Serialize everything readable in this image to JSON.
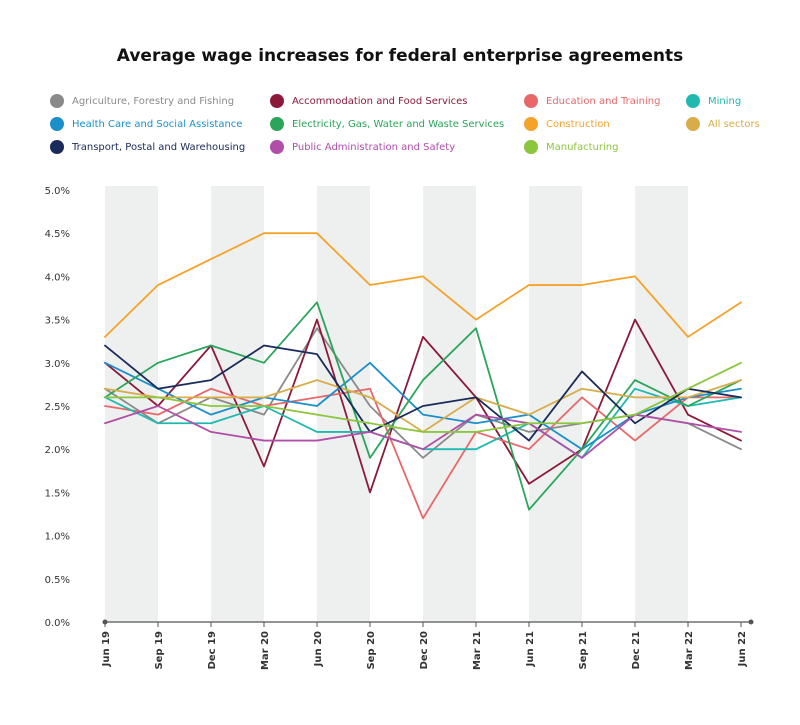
{
  "chart_data": {
    "type": "line",
    "title": "Average wage increases for federal enterprise agreements",
    "categories": [
      "Jun 19",
      "Sep 19",
      "Dec 19",
      "Mar 20",
      "Jun 20",
      "Sep 20",
      "Dec 20",
      "Mar 21",
      "Jun 21",
      "Sep 21",
      "Dec 21",
      "Mar 22",
      "Jun 22"
    ],
    "y_ticks": [
      "5.0%",
      "4.5%",
      "4.0%",
      "3.5%",
      "3.0%",
      "2.5%",
      "2.0%",
      "1.5%",
      "1.0%",
      "0.5%",
      "0.0%"
    ],
    "ylim": [
      0,
      5
    ],
    "grid": false,
    "shaded_columns": true,
    "legend_position": "top",
    "series": [
      {
        "name": "Agriculture, Forestry and Fishing",
        "color": "#8a8a8a",
        "values": [
          2.7,
          2.3,
          2.6,
          2.4,
          3.4,
          2.5,
          1.9,
          2.4,
          2.2,
          2.3,
          2.4,
          2.3,
          2.0
        ]
      },
      {
        "name": "Accommodation and Food Services",
        "color": "#8b1a3a",
        "values": [
          3.0,
          2.5,
          3.2,
          1.8,
          3.5,
          1.5,
          3.3,
          2.6,
          1.6,
          2.0,
          3.5,
          2.4,
          2.1
        ]
      },
      {
        "name": "Education and Training",
        "color": "#e8686a",
        "values": [
          2.5,
          2.4,
          2.7,
          2.5,
          2.6,
          2.7,
          1.2,
          2.2,
          2.0,
          2.6,
          2.1,
          2.6,
          2.6
        ]
      },
      {
        "name": "Mining",
        "color": "#1fb9b0",
        "values": [
          2.6,
          2.3,
          2.3,
          2.5,
          2.2,
          2.2,
          2.0,
          2.0,
          2.3,
          1.9,
          2.7,
          2.5,
          2.6
        ]
      },
      {
        "name": "Health Care and Social Assistance",
        "color": "#1a8fcb",
        "values": [
          3.0,
          2.7,
          2.4,
          2.6,
          2.5,
          3.0,
          2.4,
          2.3,
          2.4,
          2.0,
          2.4,
          2.6,
          2.7
        ]
      },
      {
        "name": "Electricity, Gas, Water and Waste Services",
        "color": "#2aa55a",
        "values": [
          2.6,
          3.0,
          3.2,
          3.0,
          3.7,
          1.9,
          2.8,
          3.4,
          1.3,
          2.0,
          2.8,
          2.5,
          2.8
        ]
      },
      {
        "name": "Construction",
        "color": "#f5a22a",
        "values": [
          3.3,
          3.9,
          4.2,
          4.5,
          4.5,
          3.9,
          4.0,
          3.5,
          3.9,
          3.9,
          4.0,
          3.3,
          3.7
        ]
      },
      {
        "name": "All sectors",
        "color": "#d8ac4a",
        "values": [
          2.7,
          2.6,
          2.6,
          2.6,
          2.8,
          2.6,
          2.2,
          2.6,
          2.4,
          2.7,
          2.6,
          2.6,
          2.8
        ]
      },
      {
        "name": "Transport, Postal and Warehousing",
        "color": "#1a2a5a",
        "values": [
          3.2,
          2.7,
          2.8,
          3.2,
          3.1,
          2.2,
          2.5,
          2.6,
          2.1,
          2.9,
          2.3,
          2.7,
          2.6
        ]
      },
      {
        "name": "Public Administration and Safety",
        "color": "#b04ea8",
        "values": [
          2.3,
          2.5,
          2.2,
          2.1,
          2.1,
          2.2,
          2.0,
          2.4,
          2.3,
          1.9,
          2.4,
          2.3,
          2.2
        ]
      },
      {
        "name": "Manufacturing",
        "color": "#8cc63f",
        "values": [
          2.6,
          2.6,
          2.5,
          2.5,
          2.4,
          2.3,
          2.2,
          2.2,
          2.3,
          2.3,
          2.4,
          2.7,
          3.0
        ]
      }
    ]
  }
}
